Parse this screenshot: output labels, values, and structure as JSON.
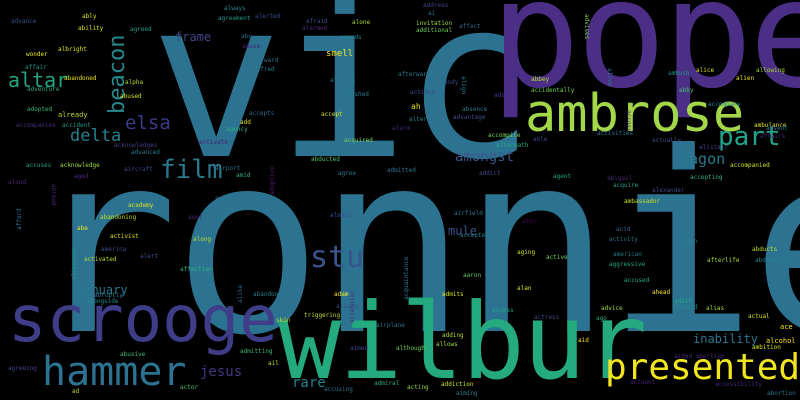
{
  "words": [
    {
      "text": "ronnie",
      "color": "#2c7391"
    },
    {
      "text": "vic",
      "color": "#2c7391"
    },
    {
      "text": "pope",
      "color": "#4b2f86"
    },
    {
      "text": "wilbur",
      "color": "#24aa7e"
    },
    {
      "text": "scrooge",
      "color": "#3f3c88"
    },
    {
      "text": "ambrose",
      "color": "#a3d74a"
    },
    {
      "text": "presented",
      "color": "#f0e51e"
    },
    {
      "text": "hammer",
      "color": "#2c7391"
    },
    {
      "text": "part",
      "color": "#21a58a"
    },
    {
      "text": "film",
      "color": "#2a788e"
    },
    {
      "text": "stu",
      "color": "#39548b"
    },
    {
      "text": "elsa",
      "color": "#3b3b84"
    },
    {
      "text": "altar",
      "color": "#23a482"
    },
    {
      "text": "beacon",
      "color": "#27898d"
    },
    {
      "text": "delta",
      "color": "#27808e"
    },
    {
      "text": "wagon",
      "color": "#2a788e"
    },
    {
      "text": "amongst",
      "color": "#3d568a"
    },
    {
      "text": "jesus",
      "color": "#453781"
    },
    {
      "text": "rare",
      "color": "#27808e"
    },
    {
      "text": "frame",
      "color": "#414487"
    },
    {
      "text": "mule",
      "color": "#3b528b"
    },
    {
      "text": "january",
      "color": "#2a788e"
    },
    {
      "text": "inability",
      "color": "#2a788e"
    },
    {
      "text": "smell",
      "color": "#f5e61e"
    },
    {
      "text": "ah",
      "color": "#dde318"
    },
    {
      "text": "already",
      "color": "#bade28"
    },
    {
      "text": "ace",
      "color": "#f1e51d"
    },
    {
      "text": "alcohol",
      "color": "#fde725"
    },
    {
      "text": "afraid",
      "color": "#3e4c8a"
    },
    {
      "text": "alarmed",
      "color": "#482878"
    },
    {
      "text": "alone",
      "color": "#addc30"
    },
    {
      "text": "ai",
      "color": "#2b748e"
    },
    {
      "text": "affect",
      "color": "#30678d"
    },
    {
      "text": "address",
      "color": "#3f4788"
    },
    {
      "text": "invitation",
      "color": "#a0da39"
    },
    {
      "text": "additional",
      "color": "#73d056"
    },
    {
      "text": "advises",
      "color": "#8bd646"
    },
    {
      "text": "abbey",
      "color": "#b5de2b"
    },
    {
      "text": "accidentally",
      "color": "#6ece58"
    },
    {
      "text": "abby",
      "color": "#47c16e"
    },
    {
      "text": "accompany",
      "color": "#238a8d"
    },
    {
      "text": "ambulance",
      "color": "#dde318"
    },
    {
      "text": "accompanied",
      "color": "#d2e21b"
    },
    {
      "text": "accepting",
      "color": "#2fb47c"
    },
    {
      "text": "ambassador",
      "color": "#c5e021"
    },
    {
      "text": "abducts",
      "color": "#bade28"
    },
    {
      "text": "abduction",
      "color": "#25848e"
    },
    {
      "text": "afterlife",
      "color": "#a8db34"
    },
    {
      "text": "accused",
      "color": "#26ad81"
    },
    {
      "text": "ahead",
      "color": "#f4e61e"
    },
    {
      "text": "adult",
      "color": "#22a785"
    },
    {
      "text": "allowed",
      "color": "#24878e"
    },
    {
      "text": "alias",
      "color": "#a8db34"
    },
    {
      "text": "actual",
      "color": "#d5e21a"
    },
    {
      "text": "ambition",
      "color": "#d8e219"
    },
    {
      "text": "advice",
      "color": "#a0da39"
    },
    {
      "text": "adding",
      "color": "#b5de2b"
    },
    {
      "text": "aid",
      "color": "#fde725"
    },
    {
      "text": "actress",
      "color": "#3e4989"
    },
    {
      "text": "although",
      "color": "#75d054"
    },
    {
      "text": "allows",
      "color": "#a2da37"
    },
    {
      "text": "airplane",
      "color": "#2d708e"
    },
    {
      "text": "acquaintance",
      "color": "#2a778e"
    },
    {
      "text": "admits",
      "color": "#dde318"
    },
    {
      "text": "aging",
      "color": "#d2e21b"
    },
    {
      "text": "active",
      "color": "#6ece58"
    },
    {
      "text": "alan",
      "color": "#dde318"
    },
    {
      "text": "aaron",
      "color": "#5ac864"
    },
    {
      "text": "accepted",
      "color": "#25838e"
    },
    {
      "text": "airfield",
      "color": "#2c718e"
    },
    {
      "text": "abandon",
      "color": "#26828e"
    },
    {
      "text": "activist",
      "color": "#dde318"
    },
    {
      "text": "abandoning",
      "color": "#c2df23"
    },
    {
      "text": "academy",
      "color": "#d5e21a"
    },
    {
      "text": "activated",
      "color": "#b5de2b"
    },
    {
      "text": "america",
      "color": "#3c508b"
    },
    {
      "text": "abe",
      "color": "#f8e621"
    },
    {
      "text": "affection",
      "color": "#2fb47c"
    },
    {
      "text": "abruptly",
      "color": "#2d718e"
    },
    {
      "text": "alongside",
      "color": "#228b8d"
    },
    {
      "text": "abusive",
      "color": "#40bd72"
    },
    {
      "text": "admitting",
      "color": "#3aba76"
    },
    {
      "text": "actor",
      "color": "#4ac16d"
    },
    {
      "text": "agreeing",
      "color": "#3f4889"
    },
    {
      "text": "ad",
      "color": "#b8de29"
    },
    {
      "text": "acting",
      "color": "#95d840"
    },
    {
      "text": "addiction",
      "color": "#cde11d"
    },
    {
      "text": "admiral",
      "color": "#27ad81"
    },
    {
      "text": "accusing",
      "color": "#2d708e"
    },
    {
      "text": "account",
      "color": "#482173"
    },
    {
      "text": "alien",
      "color": "#ece51b"
    },
    {
      "text": "alice",
      "color": "#d8e219"
    },
    {
      "text": "allowing",
      "color": "#a5db36"
    },
    {
      "text": "ambush",
      "color": "#1f958b"
    },
    {
      "text": "accompanies",
      "color": "#472c7a"
    },
    {
      "text": "adopted",
      "color": "#37b878"
    },
    {
      "text": "alpha",
      "color": "#b8de29"
    },
    {
      "text": "abused",
      "color": "#d5e21a"
    },
    {
      "text": "abandoned",
      "color": "#e5e419"
    },
    {
      "text": "albright",
      "color": "#dde318"
    },
    {
      "text": "wonder",
      "color": "#e5e419"
    },
    {
      "text": "ably",
      "color": "#dde318"
    },
    {
      "text": "ability",
      "color": "#dde318"
    },
    {
      "text": "advance",
      "color": "#3b528b"
    },
    {
      "text": "agreed",
      "color": "#1f9e89"
    },
    {
      "text": "always",
      "color": "#24868e"
    },
    {
      "text": "agreement",
      "color": "#1f968b"
    },
    {
      "text": "alerted",
      "color": "#3e4c8a"
    },
    {
      "text": "abu",
      "color": "#2d718e"
    },
    {
      "text": "abuse",
      "color": "#481f70"
    },
    {
      "text": "afterward",
      "color": "#2d708e"
    },
    {
      "text": "alfred",
      "color": "#2a788e"
    },
    {
      "text": "amends",
      "color": "#25838e"
    },
    {
      "text": "african",
      "color": "#2a788e"
    },
    {
      "text": "ambushed",
      "color": "#2a788e"
    },
    {
      "text": "afterwards",
      "color": "#2a788e"
    },
    {
      "text": "achieve",
      "color": "#3e4989"
    },
    {
      "text": "andy",
      "color": "#3f4889"
    },
    {
      "text": "align",
      "color": "#25838e"
    },
    {
      "text": "adopt",
      "color": "#453882"
    },
    {
      "text": "accepts",
      "color": "#31688e"
    },
    {
      "text": "agency",
      "color": "#29af7f"
    },
    {
      "text": "activate",
      "color": "#482475"
    },
    {
      "text": "advanced",
      "color": "#2a788e"
    },
    {
      "text": "acknowledges",
      "color": "#433e85"
    },
    {
      "text": "accuses",
      "color": "#20a386"
    },
    {
      "text": "acknowledge",
      "color": "#a2da37"
    },
    {
      "text": "aircraft",
      "color": "#3e4989"
    },
    {
      "text": "airport",
      "color": "#2a768e"
    },
    {
      "text": "amid",
      "color": "#28ae80"
    },
    {
      "text": "adoptive",
      "color": "#481f70"
    },
    {
      "text": "alley",
      "color": "#2d718e"
    },
    {
      "text": "along",
      "color": "#bade28"
    },
    {
      "text": "almost",
      "color": "#3e4c8a"
    },
    {
      "text": "agree",
      "color": "#2d708e"
    },
    {
      "text": "acquired",
      "color": "#7ad151"
    },
    {
      "text": "accept",
      "color": "#d5e21a"
    },
    {
      "text": "alter",
      "color": "#24868e"
    },
    {
      "text": "adventure",
      "color": "#22a785"
    },
    {
      "text": "affair",
      "color": "#1f968b"
    },
    {
      "text": "admitted",
      "color": "#2d708e"
    },
    {
      "text": "abducted",
      "color": "#4ec36b"
    },
    {
      "text": "accompice",
      "color": "#7ad151"
    },
    {
      "text": "aftermath",
      "color": "#23a983"
    },
    {
      "text": "addict",
      "color": "#3e4c8a"
    },
    {
      "text": "agent",
      "color": "#22a884"
    },
    {
      "text": "abigail",
      "color": "#482878"
    },
    {
      "text": "acquire",
      "color": "#1fa187"
    },
    {
      "text": "alexander",
      "color": "#3e4c8a"
    },
    {
      "text": "acid",
      "color": "#31688e"
    },
    {
      "text": "activity",
      "color": "#2c728e"
    },
    {
      "text": "american",
      "color": "#2a788e"
    },
    {
      "text": "aggressive",
      "color": "#22a884"
    },
    {
      "text": "allen",
      "color": "#27808e"
    },
    {
      "text": "aiec",
      "color": "#440154"
    },
    {
      "text": "absence",
      "color": "#2a788e"
    },
    {
      "text": "advantage",
      "color": "#3e4c8a"
    },
    {
      "text": "alive",
      "color": "#2a768e"
    },
    {
      "text": "across",
      "color": "#482173"
    },
    {
      "text": "activities",
      "color": "#2a778e"
    },
    {
      "text": "actually",
      "color": "#3b528b"
    },
    {
      "text": "able",
      "color": "#3e4989"
    },
    {
      "text": "alistair",
      "color": "#433e85"
    },
    {
      "text": "aided abortion",
      "color": "#482878"
    },
    {
      "text": "abortion",
      "color": "#2a788e"
    },
    {
      "text": "abraham",
      "color": "#2a788e"
    },
    {
      "text": "absent",
      "color": "#2a788e"
    },
    {
      "text": "alcoholic",
      "color": "#482878"
    },
    {
      "text": "accident",
      "color": "#1f968b"
    },
    {
      "text": "aimed",
      "color": "#3e4c8a"
    },
    {
      "text": "accessibility",
      "color": "#482878"
    },
    {
      "text": "access",
      "color": "#22a884"
    },
    {
      "text": "aiming",
      "color": "#27808e"
    },
    {
      "text": "alison",
      "color": "#3e4c8a"
    },
    {
      "text": "adam",
      "color": "#fde725"
    },
    {
      "text": "ago",
      "color": "#22a884"
    },
    {
      "text": "triggering",
      "color": "#bade28"
    },
    {
      "text": "skin",
      "color": "#bade28"
    },
    {
      "text": "ail",
      "color": "#bade28"
    },
    {
      "text": "alike",
      "color": "#31688e"
    },
    {
      "text": "alarm",
      "color": "#482878"
    },
    {
      "text": "alert",
      "color": "#3e4c8a"
    },
    {
      "text": "aunt",
      "color": "#482878"
    },
    {
      "text": "aged",
      "color": "#482878"
    },
    {
      "text": "afford",
      "color": "#2a788e"
    },
    {
      "text": "abroad",
      "color": "#482878"
    },
    {
      "text": "alternate",
      "color": "#1f968b"
    },
    {
      "text": "add",
      "color": "#dde318"
    },
    {
      "text": "aloud",
      "color": "#482878"
    },
    {
      "text": "affairs",
      "color": "#482878"
    }
  ]
}
